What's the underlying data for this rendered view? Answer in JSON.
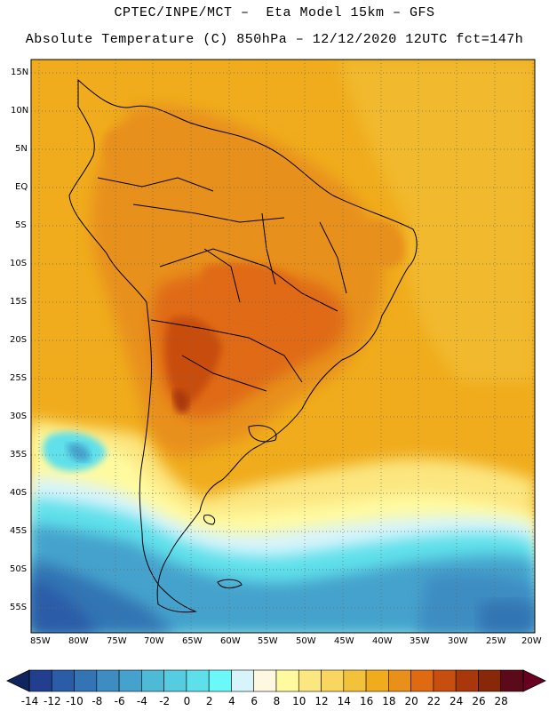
{
  "header": {
    "line1": "CPTEC/INPE/MCT –  Eta Model 15km – GFS",
    "line2": "Absolute Temperature (C) 850hPa – 12/12/2020 12UTC fct=147h"
  },
  "map": {
    "lat_labels": [
      "15N",
      "10N",
      "5N",
      "EQ",
      "5S",
      "10S",
      "15S",
      "20S",
      "25S",
      "30S",
      "35S",
      "40S",
      "45S",
      "50S",
      "55S"
    ],
    "lon_labels": [
      "85W",
      "80W",
      "75W",
      "70W",
      "65W",
      "60W",
      "55W",
      "50W",
      "45W",
      "40W",
      "35W",
      "30W",
      "25W",
      "20W"
    ]
  },
  "colorbar": {
    "labels": [
      "-14",
      "-12",
      "-10",
      "-8",
      "-6",
      "-4",
      "-2",
      "0",
      "2",
      "4",
      "6",
      "8",
      "10",
      "12",
      "14",
      "16",
      "18",
      "20",
      "22",
      "24",
      "26",
      "28"
    ],
    "colors": [
      "#223f8f",
      "#2a5ca8",
      "#3374b4",
      "#3d8cc2",
      "#45a2cc",
      "#4fbad6",
      "#55cce0",
      "#5ee0ea",
      "#6af8f8",
      "#d8f4fb",
      "#fff8e0",
      "#fffaa0",
      "#fce680",
      "#f8d660",
      "#f3c23b",
      "#f0ac1c",
      "#e8901a",
      "#e06a12",
      "#c84e10",
      "#a8380c",
      "#882808",
      "#5a0a18"
    ]
  }
}
